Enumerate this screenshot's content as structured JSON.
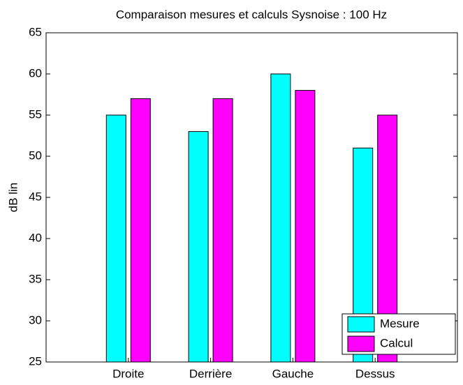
{
  "chart_data": {
    "type": "bar",
    "title": "Comparaison mesures et calculs Sysnoise : 100 Hz",
    "ylabel": "dB lin",
    "categories": [
      "Droite",
      "Derrière",
      "Gauche",
      "Dessus"
    ],
    "series": [
      {
        "name": "Mesure",
        "color": "#00ffff",
        "values": [
          55,
          53,
          60,
          51
        ]
      },
      {
        "name": "Calcul",
        "color": "#ff00ff",
        "values": [
          57,
          57,
          58,
          55
        ]
      }
    ],
    "ylim": [
      25,
      65
    ],
    "yticks": [
      25,
      30,
      35,
      40,
      45,
      50,
      55,
      60,
      65
    ],
    "grid": false,
    "legend": "lower right"
  }
}
